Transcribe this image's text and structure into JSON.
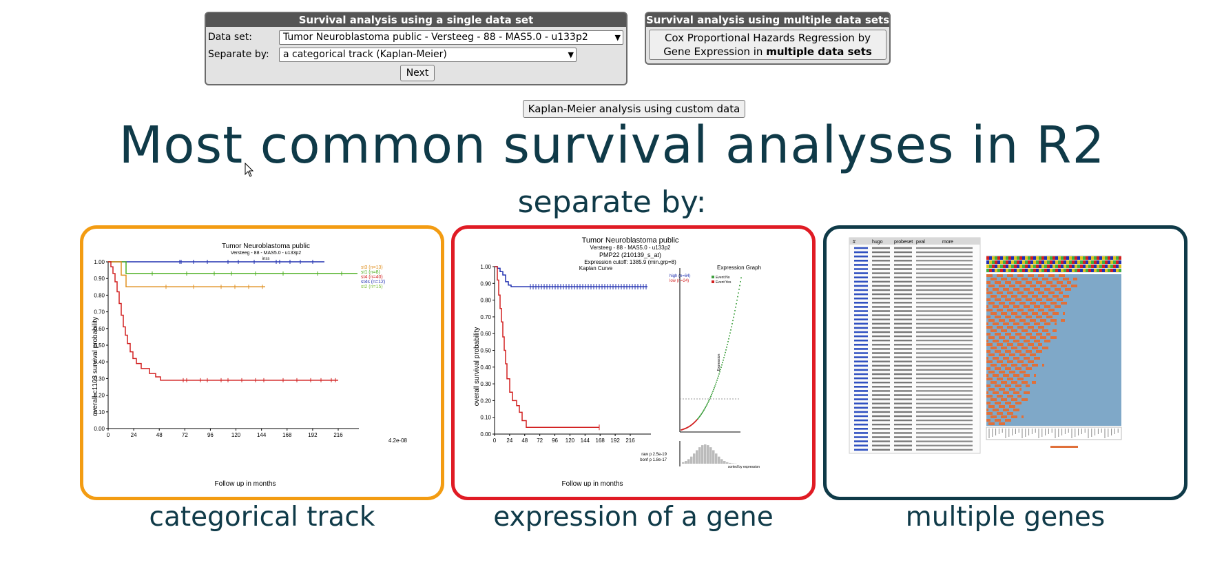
{
  "single_panel": {
    "title": "Survival analysis using a single data set",
    "dataset_label": "Data set:",
    "dataset_value": "Tumor Neuroblastoma public - Versteeg - 88 - MAS5.0 - u133p2",
    "separate_label": "Separate by:",
    "separate_value": "a categorical track (Kaplan-Meier)",
    "next_button": "Next"
  },
  "multi_panel": {
    "title": "Survival analysis using multiple data sets",
    "button_line1": "Cox Proportional Hazards Regression by",
    "button_line2_prefix": "Gene Expression in ",
    "button_line2_bold": "multiple data sets"
  },
  "custom_button": "Kaplan-Meier analysis using custom data",
  "main_title": "Most common survival analyses in R2",
  "subtitle": "separate by:",
  "cards": [
    {
      "caption": "categorical track",
      "border_color": "#f39c12"
    },
    {
      "caption": "expression of a gene",
      "border_color": "#e01b24"
    },
    {
      "caption": "multiple genes",
      "border_color": "#0f3a48"
    }
  ],
  "chart1": {
    "title": "Tumor Neuroblastoma public",
    "subtitle": "Versteeg - 88 - MAS5.0 - u133p2",
    "subtitle2": "inss",
    "ylabel": "overall-c1103 survival probability",
    "xlabel": "Follow up in months",
    "pvalue": "4.2e-08",
    "yticks": [
      "1.00",
      "0.90",
      "0.80",
      "0.70",
      "0.60",
      "0.50",
      "0.40",
      "0.30",
      "0.20",
      "0.10",
      "0.00"
    ],
    "xticks": [
      "0",
      "24",
      "48",
      "72",
      "96",
      "120",
      "144",
      "168",
      "192",
      "216"
    ],
    "legend": [
      {
        "label": "st3 (n=13)",
        "color": "#e09020"
      },
      {
        "label": "st1 (n=8)",
        "color": "#4caf20"
      },
      {
        "label": "st4 (n=40)",
        "color": "#d22020"
      },
      {
        "label": "st4s (n=12)",
        "color": "#2030b0"
      },
      {
        "label": "st2 (n=15)",
        "color": "#80c040"
      }
    ]
  },
  "chart2": {
    "title": "Tumor Neuroblastoma public",
    "subtitle": "Versteeg - 88 - MAS5.0 - u133p2",
    "gene": "PMP22 (210139_s_at)",
    "cutoff": "Expression cutoff: 1385.9 (min.grp=8)",
    "km_title": "Kaplan Curve",
    "ylabel": "overall survival probability",
    "xlabel": "Follow up in months",
    "yticks": [
      "1.00",
      "0.90",
      "0.80",
      "0.70",
      "0.60",
      "0.50",
      "0.40",
      "0.30",
      "0.20",
      "0.10",
      "0.00"
    ],
    "xticks": [
      "0",
      "24",
      "48",
      "72",
      "96",
      "120",
      "144",
      "168",
      "192",
      "216"
    ],
    "legend_high": "high (n=64)",
    "legend_low": "low (n=24)",
    "raw_p": "raw p 2.5e-19",
    "bonf_p": "bonf p 1.8e-17",
    "expr_title": "Expression Graph",
    "expr_legend1": "Event:No",
    "expr_legend2": "Event:Yes",
    "expr_ylabel": "Expression",
    "sorted_label": "sorted by expression"
  },
  "chart3": {
    "table_headers": [
      "#",
      "hugo",
      "probeset",
      "pval",
      "more"
    ]
  }
}
